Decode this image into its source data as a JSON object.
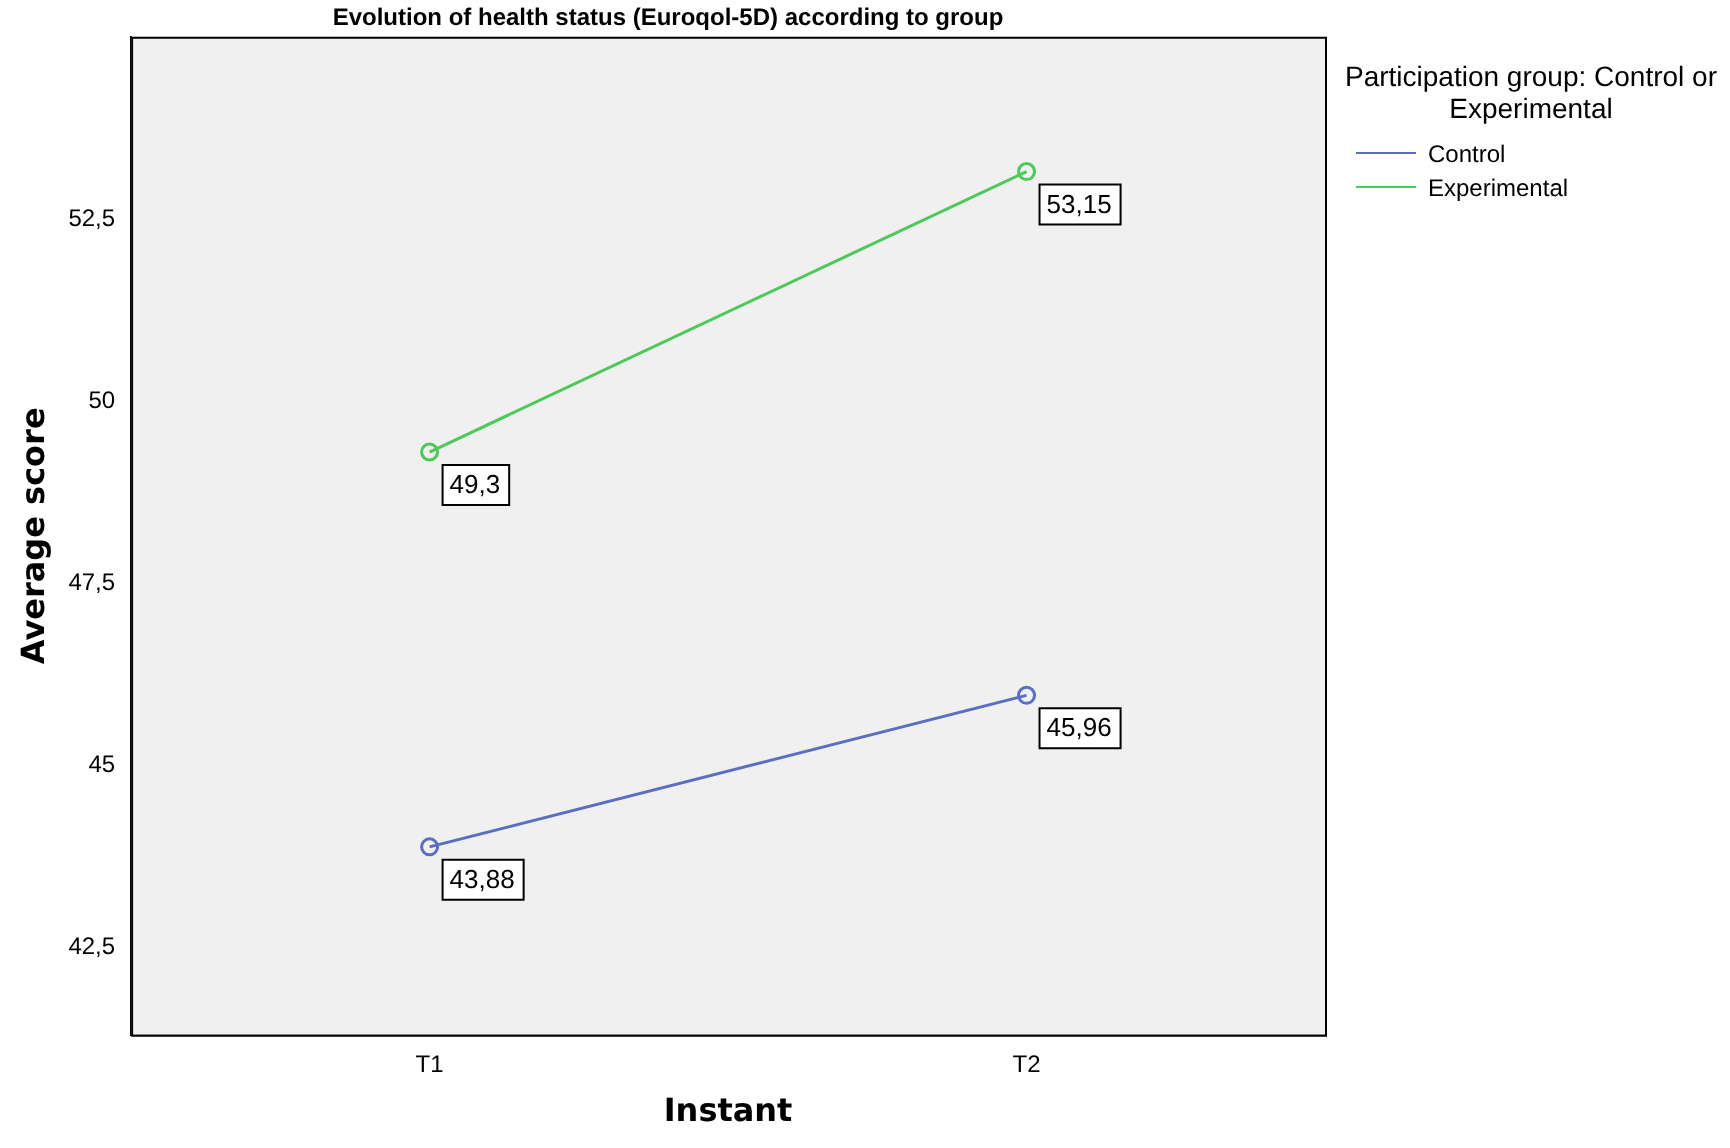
{
  "chart_data": {
    "type": "line",
    "title": "Evolution of health status (Euroqol-5D) according to group",
    "xlabel": "Instant",
    "ylabel": "Average score",
    "legend_title": "Participation group: Control or Experimental",
    "categories": [
      "T1",
      "T2"
    ],
    "series": [
      {
        "name": "Control",
        "color": "#5a6fc0",
        "values": [
          43.88,
          45.96
        ],
        "value_labels": [
          "43,88",
          "45,96"
        ]
      },
      {
        "name": "Experimental",
        "color": "#4dc95a",
        "values": [
          49.3,
          53.15
        ],
        "value_labels": [
          "49,3",
          "53,15"
        ]
      }
    ],
    "ylim": [
      41.3,
      55
    ],
    "yticks": [
      {
        "value": 42.5,
        "label": "42,5"
      },
      {
        "value": 45,
        "label": "45"
      },
      {
        "value": 47.5,
        "label": "47,5"
      },
      {
        "value": 50,
        "label": "50"
      },
      {
        "value": 52.5,
        "label": "52,5"
      }
    ],
    "grid": false,
    "legend": "top right",
    "marker": "circle",
    "line_style": "solid"
  }
}
